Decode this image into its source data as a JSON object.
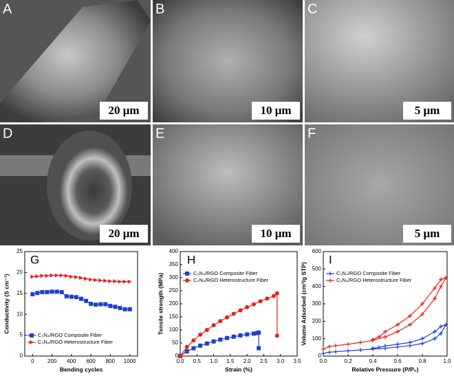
{
  "panels": [
    {
      "label": "A",
      "scale_bar": "20 μm"
    },
    {
      "label": "B",
      "scale_bar": "10 μm"
    },
    {
      "label": "C",
      "scale_bar": "5 μm"
    },
    {
      "label": "D",
      "scale_bar": "20 μm"
    },
    {
      "label": "E",
      "scale_bar": "10 μm"
    },
    {
      "label": "F",
      "scale_bar": "5 μm"
    }
  ],
  "chart_data": [
    {
      "type": "line",
      "title": "G",
      "xlabel": "Bending cycles",
      "ylabel": "Conductivity (S cm⁻¹)",
      "x": [
        0,
        50,
        100,
        150,
        200,
        250,
        300,
        350,
        400,
        450,
        500,
        550,
        600,
        650,
        700,
        750,
        800,
        850,
        900,
        950,
        1000
      ],
      "series": [
        {
          "name": "C₃N₄/RGO Composite Fiber",
          "color": "#1f3fd0",
          "marker": "square",
          "values": [
            14.8,
            15.1,
            15.3,
            15.3,
            15.4,
            15.4,
            15.3,
            14.3,
            14.2,
            14.1,
            13.7,
            13.2,
            12.5,
            12.3,
            12.4,
            12.4,
            12.0,
            11.8,
            11.5,
            11.2,
            11.2
          ]
        },
        {
          "name": "C₃N₄/RGO Heterostructure Fiber",
          "color": "#e8201c",
          "marker": "triangle-right",
          "values": [
            19.0,
            19.1,
            19.2,
            19.2,
            19.3,
            19.3,
            19.3,
            19.2,
            19.0,
            18.9,
            18.7,
            18.5,
            18.3,
            18.2,
            18.1,
            18.0,
            17.9,
            17.9,
            17.8,
            17.8,
            17.8
          ]
        }
      ],
      "xlim": [
        -80,
        1080
      ],
      "xticks": [
        0,
        200,
        400,
        600,
        800,
        1000
      ],
      "ylim": [
        0,
        25
      ],
      "yticks": [
        0,
        5,
        10,
        15,
        20,
        25
      ],
      "legend": "lower left"
    },
    {
      "type": "line",
      "title": "H",
      "xlabel": "Strain (%)",
      "ylabel": "Tensile strength (MPa)",
      "series": [
        {
          "name": "C₃N₄/RGO Composite Fiber",
          "color": "#1f3fd0",
          "marker": "square",
          "x": [
            0,
            0.2,
            0.4,
            0.6,
            0.8,
            1.0,
            1.2,
            1.4,
            1.6,
            1.8,
            2.0,
            2.2,
            2.3,
            2.35,
            2.35
          ],
          "values": [
            0,
            18,
            30,
            40,
            48,
            56,
            63,
            69,
            74,
            79,
            83,
            86,
            88,
            90,
            30
          ]
        },
        {
          "name": "C₃N₄/RGO Heterostructure Fiber",
          "color": "#e8201c",
          "marker": "circle",
          "x": [
            0,
            0.2,
            0.4,
            0.6,
            0.8,
            1.0,
            1.2,
            1.4,
            1.6,
            1.8,
            2.0,
            2.2,
            2.4,
            2.6,
            2.8,
            2.9,
            2.9
          ],
          "values": [
            0,
            35,
            60,
            82,
            100,
            118,
            134,
            148,
            162,
            175,
            187,
            198,
            210,
            220,
            230,
            240,
            78
          ]
        }
      ],
      "xlim": [
        0,
        3.5
      ],
      "xticks": [
        {
          "value": 0,
          "label": "0.0"
        },
        0.5,
        {
          "value": 1,
          "label": "1.0"
        },
        1.5,
        {
          "value": 2,
          "label": "2.0"
        },
        2.5,
        {
          "value": 3,
          "label": "3.0"
        },
        3.5
      ],
      "ylim": [
        0,
        400
      ],
      "yticks": [
        0,
        50,
        100,
        150,
        200,
        250,
        300,
        350,
        400
      ],
      "legend": "upper left"
    },
    {
      "type": "line",
      "title": "I",
      "xlabel": "Relative Pressure (P/P₀)",
      "ylabel": "Volume Adsorbed (cm³/g STP)",
      "series": [
        {
          "name": "C₃N₄/RGO  Composite Fiber",
          "color": "#1f3fd0",
          "marker": "plus",
          "x": [
            0,
            0.05,
            0.1,
            0.2,
            0.3,
            0.4,
            0.5,
            0.6,
            0.7,
            0.8,
            0.9,
            0.95,
            0.99,
            0.95,
            0.9,
            0.8,
            0.7,
            0.6,
            0.5,
            0.45,
            0.4
          ],
          "values": [
            15,
            22,
            25,
            30,
            35,
            40,
            45,
            52,
            60,
            72,
            100,
            130,
            180,
            170,
            140,
            100,
            78,
            68,
            58,
            50,
            45
          ]
        },
        {
          "name": "C₃N₄/RGO Heterostructure Fiber",
          "color": "#e8201c",
          "marker": "plus",
          "x": [
            0,
            0.05,
            0.1,
            0.2,
            0.3,
            0.4,
            0.5,
            0.6,
            0.7,
            0.8,
            0.9,
            0.95,
            0.99,
            0.95,
            0.9,
            0.8,
            0.7,
            0.6,
            0.5,
            0.45,
            0.4
          ],
          "values": [
            40,
            55,
            60,
            68,
            78,
            90,
            110,
            140,
            180,
            240,
            330,
            400,
            450,
            440,
            390,
            300,
            230,
            180,
            140,
            110,
            95
          ]
        }
      ],
      "xlim": [
        0,
        1
      ],
      "xticks": [
        {
          "value": 0,
          "label": "0.0"
        },
        0.2,
        0.4,
        0.6,
        0.8,
        {
          "value": 1,
          "label": "1.0"
        }
      ],
      "ylim": [
        0,
        600
      ],
      "yticks": [
        0,
        100,
        200,
        300,
        400,
        500,
        600
      ],
      "legend": "upper left"
    }
  ]
}
